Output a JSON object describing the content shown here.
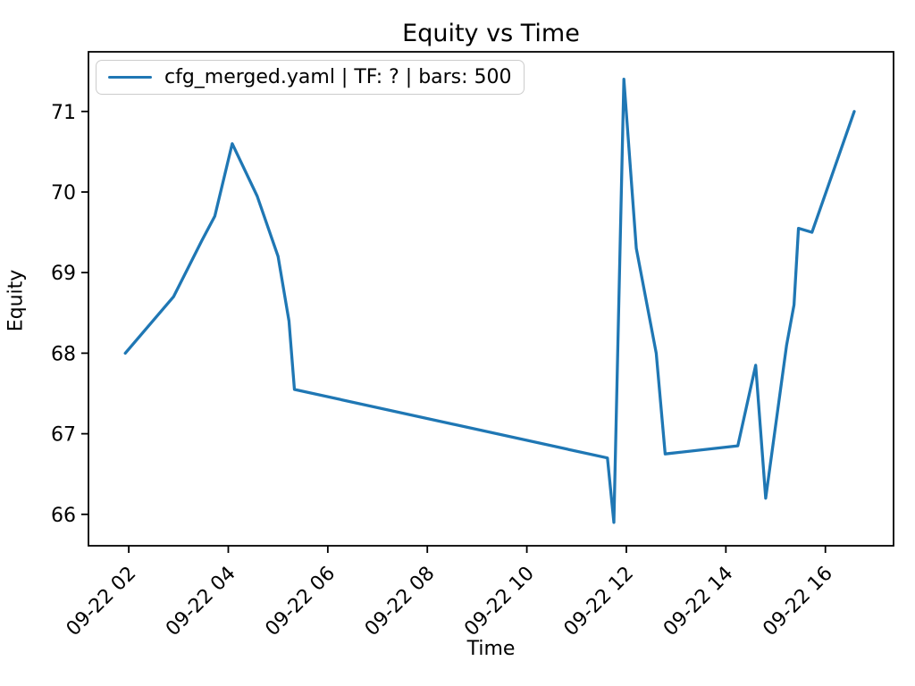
{
  "chart_data": {
    "type": "line",
    "title": "Equity vs Time",
    "xlabel": "Time",
    "ylabel": "Equity",
    "legend_position": "upper left",
    "grid": false,
    "line_color": "#1f77b4",
    "axis_color": "#000000",
    "legend_border_color": "#cccccc",
    "xlim_hours": [
      1.19,
      17.37
    ],
    "ylim": [
      65.61,
      71.74
    ],
    "y_ticks": [
      66,
      67,
      68,
      69,
      70,
      71
    ],
    "x_ticks": [
      {
        "hour": 2,
        "label": "09-22 02"
      },
      {
        "hour": 4,
        "label": "09-22 04"
      },
      {
        "hour": 6,
        "label": "09-22 06"
      },
      {
        "hour": 8,
        "label": "09-22 08"
      },
      {
        "hour": 10,
        "label": "09-22 10"
      },
      {
        "hour": 12,
        "label": "09-22 12"
      },
      {
        "hour": 14,
        "label": "09-22 14"
      },
      {
        "hour": 16,
        "label": "09-22 16"
      }
    ],
    "series": [
      {
        "name": "cfg_merged.yaml | TF: ? | bars: 500",
        "points": [
          {
            "time": "09-22 01:56",
            "hour": 1.93,
            "equity": 68.0
          },
          {
            "time": "09-22 02:54",
            "hour": 2.9,
            "equity": 68.7
          },
          {
            "time": "09-22 03:28",
            "hour": 3.47,
            "equity": 69.4
          },
          {
            "time": "09-22 03:44",
            "hour": 3.73,
            "equity": 69.7
          },
          {
            "time": "09-22 04:05",
            "hour": 4.08,
            "equity": 70.6
          },
          {
            "time": "09-22 04:35",
            "hour": 4.58,
            "equity": 69.95
          },
          {
            "time": "09-22 05:00",
            "hour": 5.0,
            "equity": 69.2
          },
          {
            "time": "09-22 05:13",
            "hour": 5.22,
            "equity": 68.4
          },
          {
            "time": "09-22 05:20",
            "hour": 5.33,
            "equity": 67.55
          },
          {
            "time": "09-22 11:37",
            "hour": 11.62,
            "equity": 66.7
          },
          {
            "time": "09-22 11:45",
            "hour": 11.75,
            "equity": 65.9
          },
          {
            "time": "09-22 11:57",
            "hour": 11.95,
            "equity": 71.4
          },
          {
            "time": "09-22 12:12",
            "hour": 12.2,
            "equity": 69.3
          },
          {
            "time": "09-22 12:36",
            "hour": 12.6,
            "equity": 68.0
          },
          {
            "time": "09-22 12:47",
            "hour": 12.78,
            "equity": 66.75
          },
          {
            "time": "09-22 14:14",
            "hour": 14.24,
            "equity": 66.85
          },
          {
            "time": "09-22 14:36",
            "hour": 14.6,
            "equity": 67.85
          },
          {
            "time": "09-22 14:48",
            "hour": 14.8,
            "equity": 66.2
          },
          {
            "time": "09-22 15:13",
            "hour": 15.22,
            "equity": 68.1
          },
          {
            "time": "09-22 15:22",
            "hour": 15.37,
            "equity": 68.6
          },
          {
            "time": "09-22 15:28",
            "hour": 15.46,
            "equity": 69.55
          },
          {
            "time": "09-22 15:44",
            "hour": 15.73,
            "equity": 69.5
          },
          {
            "time": "09-22 16:35",
            "hour": 16.58,
            "equity": 71.0
          }
        ]
      }
    ]
  }
}
